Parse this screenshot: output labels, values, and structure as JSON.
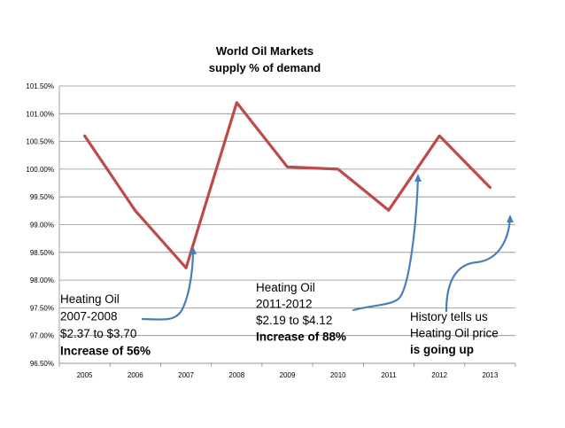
{
  "chart_data": {
    "type": "line",
    "title": [
      "World Oil Markets",
      "supply % of demand"
    ],
    "xlabel": "",
    "ylabel": "",
    "categories": [
      "2005",
      "2006",
      "2007",
      "2008",
      "2009",
      "2010",
      "2011",
      "2012",
      "2013"
    ],
    "series": [
      {
        "name": "",
        "color": "#be4b48",
        "values": [
          100.6,
          99.25,
          98.22,
          101.2,
          100.04,
          100.0,
          99.26,
          100.6,
          99.67
        ]
      }
    ],
    "ylim": [
      96.5,
      101.5
    ],
    "yticks": [
      96.5,
      97.0,
      97.5,
      98.0,
      98.5,
      99.0,
      99.5,
      100.0,
      100.5,
      101.0,
      101.5
    ],
    "ytick_labels": [
      "96.50%",
      "97.00%",
      "97.50%",
      "98.00%",
      "98.50%",
      "99.00%",
      "99.50%",
      "100.00%",
      "100.50%",
      "101.00%",
      "101.50%"
    ],
    "grid": true,
    "legend": "none",
    "annotations": [
      {
        "lines": [
          "Heating Oil",
          "2007-2008",
          "$2.37 to $3.70",
          "Increase of 56%"
        ],
        "bold_last": true
      },
      {
        "lines": [
          "Heating Oil",
          "2011-2012",
          "$2.19 to $4.12",
          "Increase of 88%"
        ],
        "bold_last": true
      },
      {
        "lines": [
          "History tells us",
          "Heating Oil price",
          "is going up"
        ],
        "bold_last": true
      }
    ],
    "arrow_color": "#4a7ebb"
  }
}
